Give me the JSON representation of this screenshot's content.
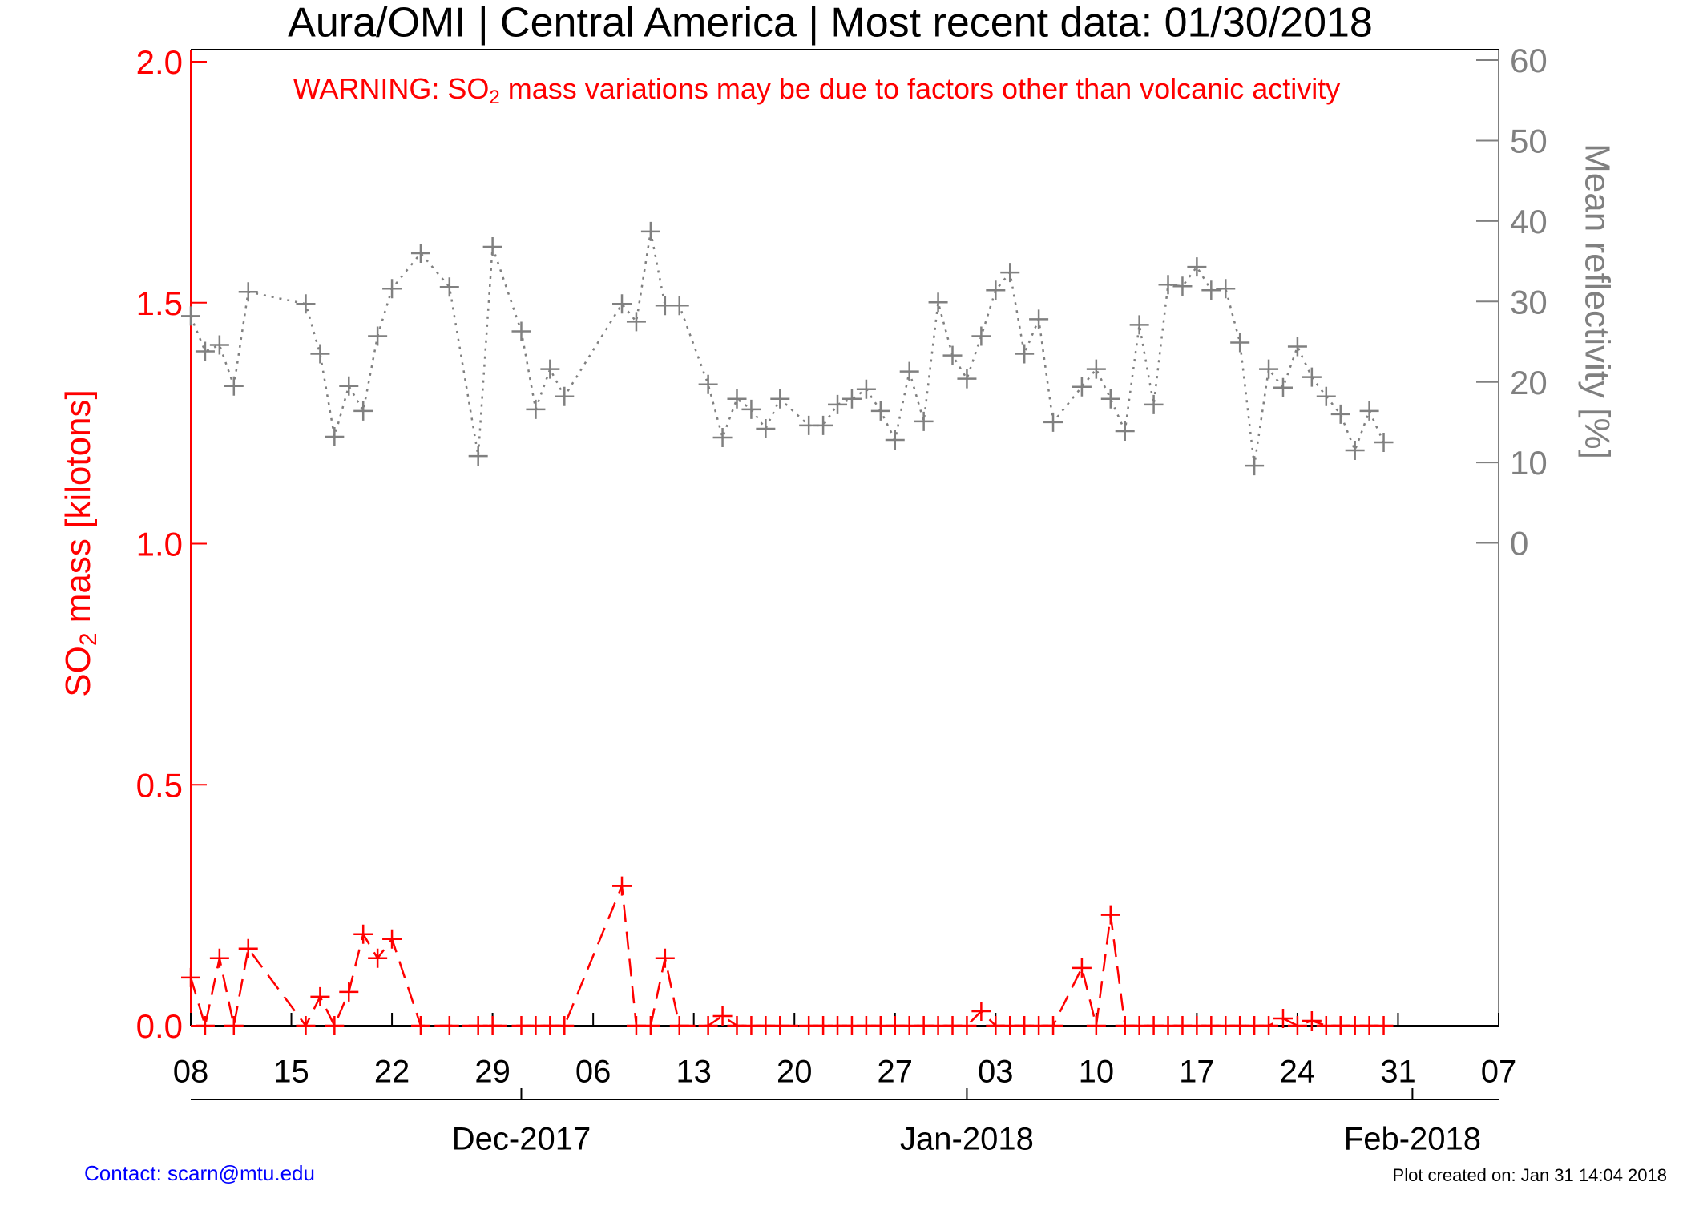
{
  "chart_data": {
    "type": "line",
    "title": "Aura/OMI | Central America | Most recent data: 01/30/2018",
    "annotation": {
      "before": "WARNING: SO",
      "sub": "2",
      "after": " mass variations may be due to factors other than volcanic activity"
    },
    "ylabel": {
      "before": "SO",
      "sub": "2",
      "after": " mass [kilotons]"
    },
    "y2label": "Mean reflectivity [%]",
    "footer_left": "Contact: scarn@mtu.edu",
    "footer_right": "Plot created on: Jan 31 14:04 2018",
    "x": [
      "2017-11-08",
      "2017-11-09",
      "2017-11-10",
      "2017-11-11",
      "2017-11-12",
      "2017-11-16",
      "2017-11-17",
      "2017-11-18",
      "2017-11-19",
      "2017-11-20",
      "2017-11-21",
      "2017-11-22",
      "2017-11-24",
      "2017-11-26",
      "2017-11-28",
      "2017-11-29",
      "2017-12-01",
      "2017-12-02",
      "2017-12-03",
      "2017-12-04",
      "2017-12-08",
      "2017-12-09",
      "2017-12-10",
      "2017-12-11",
      "2017-12-12",
      "2017-12-14",
      "2017-12-15",
      "2017-12-16",
      "2017-12-17",
      "2017-12-18",
      "2017-12-19",
      "2017-12-21",
      "2017-12-22",
      "2017-12-23",
      "2017-12-24",
      "2017-12-25",
      "2017-12-26",
      "2017-12-27",
      "2017-12-28",
      "2017-12-29",
      "2017-12-30",
      "2017-12-31",
      "2018-01-01",
      "2018-01-02",
      "2018-01-03",
      "2018-01-04",
      "2018-01-05",
      "2018-01-06",
      "2018-01-07",
      "2018-01-09",
      "2018-01-10",
      "2018-01-11",
      "2018-01-12",
      "2018-01-13",
      "2018-01-14",
      "2018-01-15",
      "2018-01-16",
      "2018-01-17",
      "2018-01-18",
      "2018-01-19",
      "2018-01-20",
      "2018-01-21",
      "2018-01-22",
      "2018-01-23",
      "2018-01-24",
      "2018-01-25",
      "2018-01-26",
      "2018-01-27",
      "2018-01-28",
      "2018-01-29",
      "2018-01-30"
    ],
    "xlim": [
      "2017-11-08",
      "2018-02-07"
    ],
    "xticks": [
      {
        "value": "2017-11-08",
        "label": "08"
      },
      {
        "value": "2017-11-15",
        "label": "15"
      },
      {
        "value": "2017-11-22",
        "label": "22"
      },
      {
        "value": "2017-11-29",
        "label": "29"
      },
      {
        "value": "2017-12-06",
        "label": "06"
      },
      {
        "value": "2017-12-13",
        "label": "13"
      },
      {
        "value": "2017-12-20",
        "label": "20"
      },
      {
        "value": "2017-12-27",
        "label": "27"
      },
      {
        "value": "2018-01-03",
        "label": "03"
      },
      {
        "value": "2018-01-10",
        "label": "10"
      },
      {
        "value": "2018-01-17",
        "label": "17"
      },
      {
        "value": "2018-01-24",
        "label": "24"
      },
      {
        "value": "2018-01-31",
        "label": "31"
      },
      {
        "value": "2018-02-07",
        "label": "07"
      }
    ],
    "xticks_secondary": [
      {
        "value": "2017-12-01",
        "label": "Dec-2017"
      },
      {
        "value": "2018-01-01",
        "label": "Jan-2018"
      },
      {
        "value": "2018-02-01",
        "label": "Feb-2018"
      }
    ],
    "ylim": [
      0,
      2.025
    ],
    "yticks": [
      {
        "value": 0,
        "label": "0.0"
      },
      0.5,
      {
        "value": 1,
        "label": "1.0"
      },
      1.5,
      {
        "value": 2,
        "label": "2.0"
      }
    ],
    "y2lim": [
      -60,
      61.3
    ],
    "y2ticks": [
      0,
      10,
      20,
      30,
      40,
      50,
      60
    ],
    "series": [
      {
        "color": "#ff0000",
        "line_style": "dashed",
        "values": [
          0.1,
          0,
          0.14,
          0,
          0.16,
          0,
          0.06,
          0,
          0.07,
          0.19,
          0.14,
          0.18,
          0,
          0,
          0,
          0,
          0,
          0,
          0,
          0,
          0.29,
          0,
          0,
          0.14,
          0,
          0,
          0.02,
          0,
          0,
          0,
          0,
          0,
          0,
          0,
          0,
          0,
          0,
          0,
          0,
          0,
          0,
          0,
          0,
          0.03,
          0,
          0,
          0,
          0,
          0,
          0.12,
          0,
          0.23,
          0,
          0,
          0,
          0,
          0,
          0,
          0,
          0,
          0,
          0,
          0,
          0.015,
          0,
          0.01,
          0,
          0,
          0,
          0,
          0
        ]
      },
      {
        "color": "#808080",
        "line_style": "dotted",
        "axis": "y2",
        "values": [
          28.2,
          23.8,
          24.6,
          19.5,
          31.2,
          29.7,
          23.5,
          13.2,
          19.5,
          16.4,
          25.7,
          31.6,
          36.0,
          31.8,
          10.8,
          36.8,
          26.3,
          16.6,
          21.6,
          18.2,
          29.7,
          27.5,
          38.7,
          29.5,
          29.5,
          19.7,
          13.1,
          17.9,
          16.6,
          14.2,
          17.9,
          14.6,
          14.6,
          17.2,
          17.9,
          19.1,
          16.4,
          12.8,
          21.3,
          15.1,
          29.9,
          23.3,
          20.4,
          25.7,
          31.4,
          33.6,
          23.5,
          27.8,
          15.0,
          19.4,
          21.6,
          17.9,
          13.9,
          27.1,
          17.2,
          32.1,
          31.9,
          34.3,
          31.4,
          31.6,
          24.9,
          9.6,
          21.6,
          19.3,
          24.4,
          20.6,
          18.2,
          16.0,
          11.5,
          16.4,
          12.5
        ]
      }
    ]
  }
}
